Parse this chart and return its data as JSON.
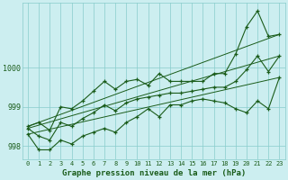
{
  "title": "Graphe pression niveau de la mer (hPa)",
  "bg_color": "#cceef0",
  "grid_color": "#88cccc",
  "line_color": "#1a5c1a",
  "hours": [
    0,
    1,
    2,
    3,
    4,
    5,
    6,
    7,
    8,
    9,
    10,
    11,
    12,
    13,
    14,
    15,
    16,
    17,
    18,
    19,
    20,
    21,
    22,
    23
  ],
  "p_max": [
    998.5,
    998.6,
    998.4,
    999.0,
    998.95,
    999.15,
    999.4,
    999.65,
    999.45,
    999.65,
    999.7,
    999.55,
    999.85,
    999.65,
    999.65,
    999.65,
    999.65,
    999.85,
    999.85,
    1000.35,
    1001.05,
    1001.45,
    1000.8,
    1000.85
  ],
  "p_mean": [
    998.45,
    998.25,
    998.15,
    998.6,
    998.5,
    998.7,
    998.85,
    999.05,
    998.9,
    999.1,
    999.2,
    999.25,
    999.3,
    999.35,
    999.35,
    999.4,
    999.45,
    999.5,
    999.5,
    999.65,
    999.95,
    1000.3,
    999.9,
    1000.3
  ],
  "p_min": [
    998.3,
    997.9,
    997.9,
    998.15,
    998.05,
    998.25,
    998.35,
    998.45,
    998.35,
    998.6,
    998.75,
    998.95,
    998.75,
    999.05,
    999.05,
    999.15,
    999.2,
    999.15,
    999.1,
    998.95,
    998.85,
    999.15,
    998.95,
    999.75
  ],
  "ylim": [
    997.65,
    1001.65
  ],
  "yticks": [
    998,
    999,
    1000
  ],
  "figsize": [
    3.2,
    2.0
  ],
  "dpi": 100
}
